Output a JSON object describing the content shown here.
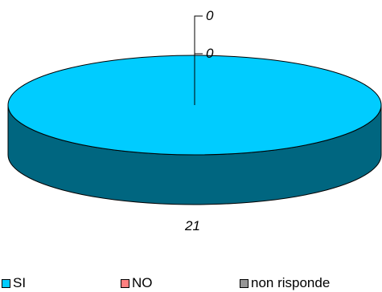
{
  "chart_data": {
    "type": "pie",
    "categories": [
      "SI",
      "NO",
      "non risponde"
    ],
    "values": [
      21,
      0,
      0
    ],
    "data_labels": [
      "21",
      "0",
      "0"
    ],
    "colors": [
      "#00ccff",
      "#ff8080",
      "#969696"
    ],
    "side_color": "#006680",
    "legend_position": "bottom",
    "three_d": true
  }
}
